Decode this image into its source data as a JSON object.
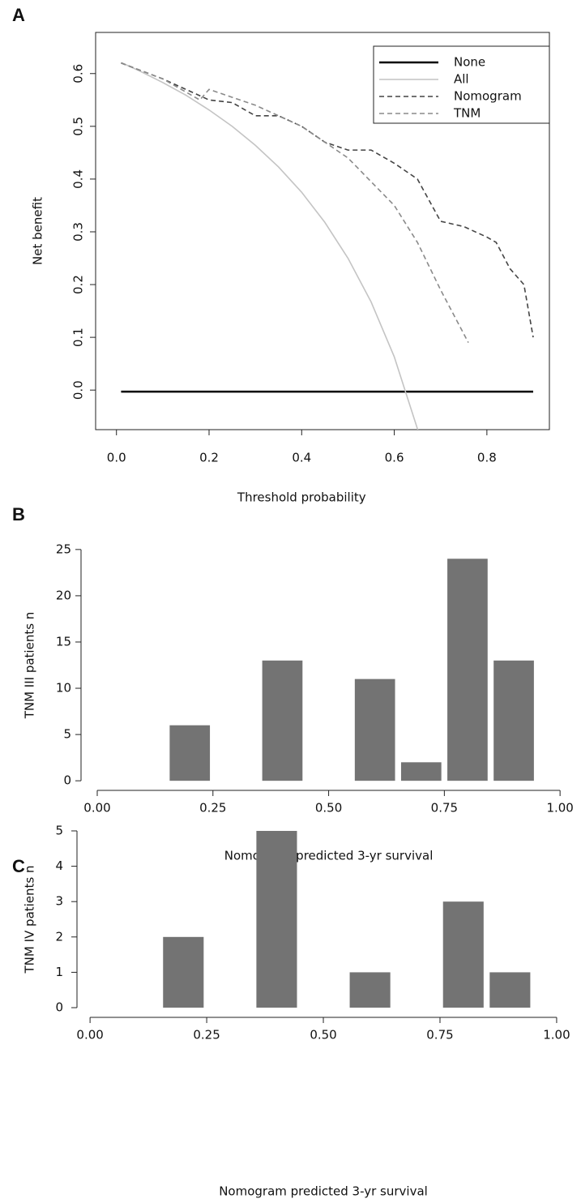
{
  "chart_data": [
    {
      "type": "line",
      "panel_label": "A",
      "x_label": "Threshold probability",
      "y_label": "Net benefit",
      "xlim": [
        -0.045,
        0.935
      ],
      "ylim": [
        -0.075,
        0.678
      ],
      "xticks": [
        {
          "value": 0,
          "label": "0.0"
        },
        0.2,
        0.4,
        0.6,
        0.8
      ],
      "yticks": [
        {
          "value": 0,
          "label": "0.0"
        },
        0.1,
        0.2,
        0.3,
        0.4,
        0.5,
        0.6
      ],
      "legend": "top-right",
      "series": [
        {
          "name": "None",
          "color": "#000000",
          "dash": "solid",
          "x": [
            0.01,
            0.9
          ],
          "values": [
            -0.003,
            -0.003
          ]
        },
        {
          "name": "All",
          "color": "#c4c4c4",
          "dash": "solid",
          "x": [
            0.01,
            0.05,
            0.1,
            0.15,
            0.2,
            0.25,
            0.3,
            0.35,
            0.4,
            0.45,
            0.5,
            0.55,
            0.6,
            0.655
          ],
          "values": [
            0.621,
            0.605,
            0.583,
            0.559,
            0.531,
            0.5,
            0.464,
            0.423,
            0.375,
            0.318,
            0.25,
            0.167,
            0.063,
            -0.087
          ]
        },
        {
          "name": "Nomogram",
          "color": "#444444",
          "dash": "dashed",
          "x": [
            0.01,
            0.1,
            0.2,
            0.25,
            0.3,
            0.35,
            0.4,
            0.45,
            0.5,
            0.55,
            0.6,
            0.65,
            0.7,
            0.75,
            0.8,
            0.82,
            0.85,
            0.88,
            0.9
          ],
          "values": [
            0.62,
            0.59,
            0.55,
            0.545,
            0.52,
            0.52,
            0.5,
            0.47,
            0.455,
            0.455,
            0.43,
            0.4,
            0.32,
            0.31,
            0.29,
            0.28,
            0.23,
            0.2,
            0.1
          ]
        },
        {
          "name": "TNM",
          "color": "#8a8a8a",
          "dash": "dashed",
          "x": [
            0.01,
            0.1,
            0.18,
            0.2,
            0.3,
            0.4,
            0.5,
            0.6,
            0.65,
            0.7,
            0.76
          ],
          "values": [
            0.62,
            0.59,
            0.55,
            0.57,
            0.54,
            0.5,
            0.44,
            0.35,
            0.28,
            0.19,
            0.09
          ]
        }
      ]
    },
    {
      "type": "bar",
      "panel_label": "B",
      "x_label": "Nomogram predicted 3-yr survival",
      "y_label": "TNM III patients n",
      "color": "#737373",
      "x": [
        0.2,
        0.4,
        0.6,
        0.7,
        0.8,
        0.9
      ],
      "values": [
        6,
        13,
        11,
        2,
        24,
        13
      ],
      "xlim": [
        -0.035,
        1.04
      ],
      "ylim": [
        -0.6,
        25.6
      ],
      "xticks": [
        {
          "value": 0,
          "label": "0.00"
        },
        0.25,
        {
          "value": 0.5,
          "label": "0.50"
        },
        0.75,
        {
          "value": 1,
          "label": "1.00"
        }
      ],
      "yticks": [
        0,
        5,
        10,
        15,
        20,
        25
      ]
    },
    {
      "type": "bar",
      "panel_label": "C",
      "x_label": "Nomogram predicted 3-yr survival",
      "y_label": "TNM IV patients n",
      "color": "#737373",
      "x": [
        0.2,
        0.4,
        0.6,
        0.8,
        0.9
      ],
      "values": [
        2,
        5,
        1,
        3,
        1
      ],
      "xlim": [
        -0.028,
        1.047
      ],
      "ylim": [
        -0.16,
        5.16
      ],
      "xticks": [
        {
          "value": 0,
          "label": "0.00"
        },
        0.25,
        {
          "value": 0.5,
          "label": "0.50"
        },
        0.75,
        {
          "value": 1,
          "label": "1.00"
        }
      ],
      "yticks": [
        0,
        1,
        2,
        3,
        4,
        5
      ]
    }
  ]
}
